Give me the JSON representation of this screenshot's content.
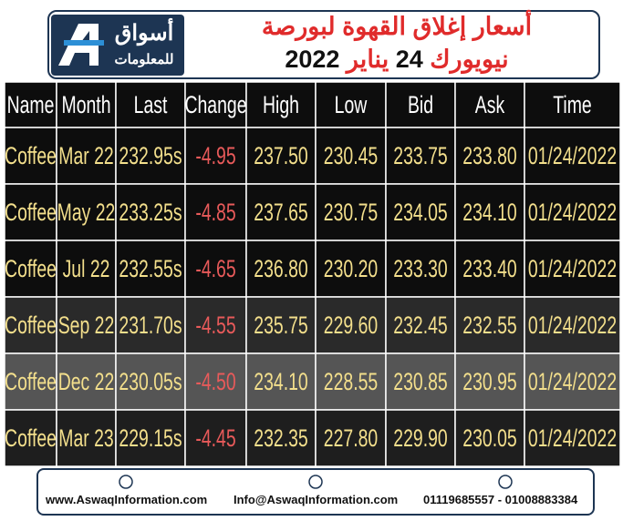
{
  "header": {
    "logo": {
      "line1": "أسواق",
      "line2": "للمعلومات"
    },
    "title_line1": "أسعار إغلاق القهوة لبورصة",
    "title_line2": [
      "نيويورك",
      "24",
      "يناير",
      "2022"
    ]
  },
  "table": {
    "headers": [
      "Name",
      "Month",
      "Last",
      "Change",
      "High",
      "Low",
      "Bid",
      "Ask",
      "Time"
    ],
    "rows": [
      [
        "Coffee",
        "Mar 22",
        "232.95s",
        "-4.95",
        "237.50",
        "230.45",
        "233.75",
        "233.80",
        "01/24/2022"
      ],
      [
        "Coffee",
        "May 22",
        "233.25s",
        "-4.85",
        "237.65",
        "230.75",
        "234.05",
        "234.10",
        "01/24/2022"
      ],
      [
        "Coffee",
        "Jul 22",
        "232.55s",
        "-4.65",
        "236.80",
        "230.20",
        "233.30",
        "233.40",
        "01/24/2022"
      ],
      [
        "Coffee",
        "Sep 22",
        "231.70s",
        "-4.55",
        "235.75",
        "229.60",
        "232.45",
        "232.55",
        "01/24/2022"
      ],
      [
        "Coffee",
        "Dec 22",
        "230.05s",
        "-4.50",
        "234.10",
        "228.55",
        "230.85",
        "230.95",
        "01/24/2022"
      ],
      [
        "Coffee",
        "Mar 23",
        "229.15s",
        "-4.45",
        "232.35",
        "227.80",
        "229.90",
        "230.05",
        "01/24/2022"
      ]
    ]
  },
  "footer": {
    "website": "www.AswaqInformation.com",
    "email": "Info@AswaqInformation.com",
    "phones": "01119685557 - 01008883384"
  }
}
